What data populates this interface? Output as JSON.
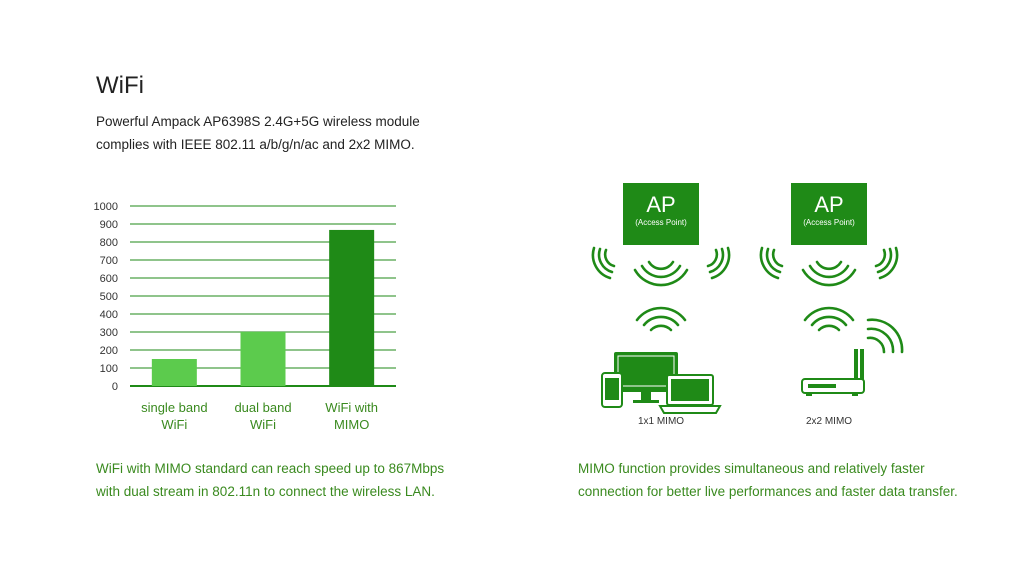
{
  "header": {
    "title": "WiFi",
    "intro_lines": [
      "Powerful Ampack AP6398S 2.4G+5G wireless module",
      "complies with IEEE 802.11 a/b/g/n/ac and 2x2 MIMO."
    ]
  },
  "chart_data": {
    "type": "bar",
    "categories": [
      [
        "single band",
        "WiFi"
      ],
      [
        "dual band",
        "WiFi"
      ],
      [
        "WiFi with",
        "MIMO"
      ]
    ],
    "values": [
      150,
      300,
      867
    ],
    "ylim": [
      0,
      1000
    ],
    "yticks": [
      0,
      100,
      200,
      300,
      400,
      500,
      600,
      700,
      800,
      900,
      1000
    ],
    "grid": true,
    "bar_colors": [
      "#5ccb4d",
      "#5ccb4d",
      "#1f8a17"
    ],
    "title": "",
    "xlabel": "",
    "ylabel": ""
  },
  "notes": {
    "left_lines": [
      "WiFi with MIMO standard can reach speed up to 867Mbps",
      "with dual stream in 802.11n to connect the wireless LAN."
    ],
    "right_lines": [
      "MIMO function provides simultaneous and relatively faster",
      "connection for better live performances and faster data transfer."
    ]
  },
  "diagrams": {
    "ap_label": "AP",
    "ap_sublabel": "(Access Point)",
    "left_caption": "1x1 MIMO",
    "right_caption": "2x2 MIMO",
    "left_icons": [
      "wifi-signal-icon",
      "monitor-icon",
      "laptop-icon",
      "phone-icon"
    ],
    "right_icons": [
      "wifi-signal-icon",
      "router-icon"
    ]
  },
  "colors": {
    "accent_dark": "#1f8a17",
    "accent_light": "#5ccb4d",
    "note_text": "#3a8a1f"
  }
}
